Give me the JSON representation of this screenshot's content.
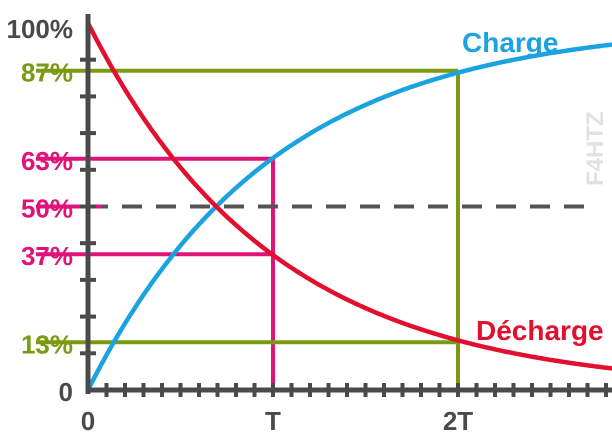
{
  "chart_data": {
    "type": "line",
    "title": "",
    "xlabel": "",
    "ylabel": "",
    "xlim": [
      0,
      2.85
    ],
    "ylim": [
      0,
      100
    ],
    "grid": false,
    "x_ticks": [
      {
        "value": 0,
        "label": "0"
      },
      {
        "value": 1,
        "label": "T"
      },
      {
        "value": 2,
        "label": "2T"
      }
    ],
    "y_ticks": [
      {
        "value": 100,
        "label": "100%"
      },
      {
        "value": 0,
        "label": "0"
      }
    ],
    "series": [
      {
        "name": "Charge",
        "color": "#1aa3e0",
        "formula": "100*(1-exp(-x))"
      },
      {
        "name": "Décharge",
        "color": "#e0102e",
        "formula": "100*exp(-x)"
      }
    ],
    "reference_lines": [
      {
        "label": "87%",
        "y": 87,
        "x": 2,
        "color": "#7a9a14",
        "style": "solid"
      },
      {
        "label": "63%",
        "y": 63,
        "x": 1,
        "color": "#e0137a",
        "style": "solid"
      },
      {
        "label": "50%",
        "y": 50,
        "x_end": 2.7,
        "color": "#e0137a",
        "style": "dashed",
        "line_color": "#555555"
      },
      {
        "label": "37%",
        "y": 37,
        "x": 1,
        "color": "#e0137a",
        "style": "solid"
      },
      {
        "label": "13%",
        "y": 13,
        "x": 2,
        "color": "#7a9a14",
        "style": "solid"
      }
    ],
    "watermark": "F4HTZ"
  }
}
